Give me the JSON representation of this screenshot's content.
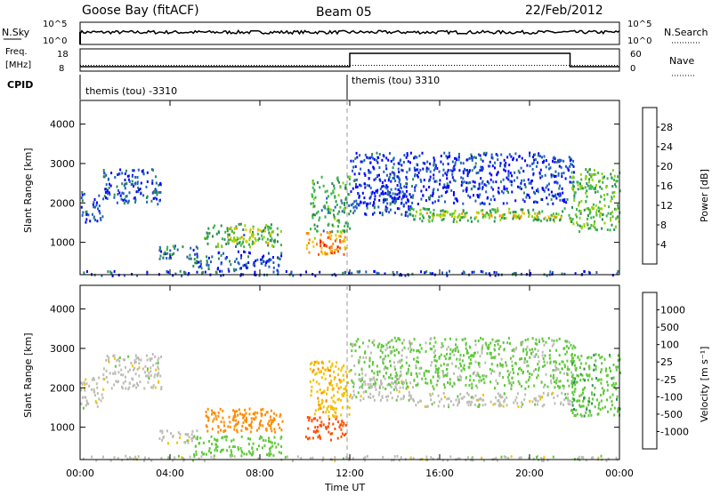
{
  "header": {
    "station": "Goose Bay (fitACF)",
    "beam": "Beam 05",
    "date": "22/Feb/2012"
  },
  "sky_panel": {
    "left_label": "N.Sky",
    "right_label": "N.Search",
    "left_ticks": [
      "10^5",
      "10^0"
    ],
    "right_ticks": [
      "10^5",
      "10^0"
    ]
  },
  "freq_panel": {
    "left_label_line1": "Freq.",
    "left_label_line2": "[MHz]",
    "right_label": "Nave",
    "left_ticks": [
      "18",
      "8"
    ],
    "right_ticks": [
      "60",
      "0"
    ]
  },
  "cpid_panel": {
    "label": "CPID",
    "programs": [
      {
        "name": "themis (tou) -3310",
        "start_hour": 0,
        "end_hour": 12
      },
      {
        "name": "themis (tou) 3310",
        "start_hour": 12,
        "end_hour": 24
      }
    ]
  },
  "axes": {
    "ylabel": "Slant Range [km]",
    "yticks": [
      "4000",
      "3000",
      "2000",
      "1000"
    ],
    "xticks": [
      "00:00",
      "04:00",
      "08:00",
      "12:00",
      "16:00",
      "20:00",
      "00:00"
    ],
    "xlabel": "Time UT"
  },
  "power_bar": {
    "label": "Power [dB]",
    "ticks": [
      "28",
      "24",
      "20",
      "16",
      "12",
      "8",
      "4"
    ],
    "colors": [
      "#ff0000",
      "#ff4f00",
      "#ff8c00",
      "#f2c200",
      "#8ed400",
      "#3ab54a",
      "#2e8b57",
      "#1f5fbf",
      "#0000ff"
    ]
  },
  "velocity_bar": {
    "label": "Velocity [m s⁻¹]",
    "ticks": [
      "1000",
      "500",
      "100",
      "25",
      "-25",
      "-100",
      "-500",
      "-1000"
    ],
    "colors": [
      "#2244aa",
      "#1f7a8c",
      "#2e8b57",
      "#5fc93a",
      "#bdbdb6",
      "#f2c200",
      "#ff8c00",
      "#ff5000",
      "#ff0000"
    ]
  },
  "chart_data": {
    "type": "heatmap",
    "title": "Goose Bay (fitACF)",
    "xlabel": "Time UT",
    "ylabel": "Slant Range [km]",
    "x_range_hours": [
      0,
      24
    ],
    "y_range_km": [
      180,
      4600
    ],
    "power_regions": [
      {
        "t0": 0.0,
        "t1": 1.0,
        "r0": 1500,
        "r1": 2300,
        "power_db": 6
      },
      {
        "t0": 1.0,
        "t1": 3.6,
        "r0": 2000,
        "r1": 2900,
        "power_db": 6
      },
      {
        "t0": 3.5,
        "t1": 5.2,
        "r0": 600,
        "r1": 950,
        "power_db": 8
      },
      {
        "t0": 5.5,
        "t1": 9.0,
        "r0": 900,
        "r1": 1500,
        "power_db": 12
      },
      {
        "t0": 6.5,
        "t1": 8.5,
        "r0": 1000,
        "r1": 1400,
        "power_db": 18
      },
      {
        "t0": 5.0,
        "t1": 9.0,
        "r0": 300,
        "r1": 800,
        "power_db": 6
      },
      {
        "t0": 10.0,
        "t1": 11.8,
        "r0": 700,
        "r1": 1300,
        "power_db": 22
      },
      {
        "t0": 10.6,
        "t1": 11.6,
        "r0": 700,
        "r1": 1100,
        "power_db": 28
      },
      {
        "t0": 10.2,
        "t1": 12.0,
        "r0": 1300,
        "r1": 2700,
        "power_db": 12
      },
      {
        "t0": 12.0,
        "t1": 14.8,
        "r0": 1700,
        "r1": 2300,
        "power_db": 6
      },
      {
        "t0": 14.6,
        "t1": 21.8,
        "r0": 1550,
        "r1": 1900,
        "power_db": 13
      },
      {
        "t0": 15.0,
        "t1": 21.5,
        "r0": 1650,
        "r1": 1800,
        "power_db": 19
      },
      {
        "t0": 12.0,
        "t1": 22.0,
        "r0": 2000,
        "r1": 3300,
        "power_db": 5
      },
      {
        "t0": 21.8,
        "t1": 24.0,
        "r0": 1300,
        "r1": 2900,
        "power_db": 14
      },
      {
        "t0": 0.0,
        "t1": 24.0,
        "r0": 180,
        "r1": 300,
        "power_db": 6
      }
    ],
    "velocity_regions": [
      {
        "t0": 0.0,
        "t1": 1.0,
        "r0": 1500,
        "r1": 2300,
        "velocity_ms": 0
      },
      {
        "t0": 1.0,
        "t1": 3.6,
        "r0": 2000,
        "r1": 2900,
        "velocity_ms": 0
      },
      {
        "t0": 3.5,
        "t1": 5.2,
        "r0": 600,
        "r1": 950,
        "velocity_ms": 0
      },
      {
        "t0": 5.5,
        "t1": 9.0,
        "r0": 900,
        "r1": 1500,
        "velocity_ms": -150
      },
      {
        "t0": 6.5,
        "t1": 8.5,
        "r0": 1000,
        "r1": 1400,
        "velocity_ms": -400
      },
      {
        "t0": 5.0,
        "t1": 9.0,
        "r0": 300,
        "r1": 800,
        "velocity_ms": 60
      },
      {
        "t0": 10.0,
        "t1": 11.8,
        "r0": 700,
        "r1": 1300,
        "velocity_ms": -600
      },
      {
        "t0": 10.2,
        "t1": 12.0,
        "r0": 1300,
        "r1": 2700,
        "velocity_ms": -80
      },
      {
        "t0": 12.0,
        "t1": 14.8,
        "r0": 1700,
        "r1": 2300,
        "velocity_ms": 0
      },
      {
        "t0": 14.6,
        "t1": 21.8,
        "r0": 1550,
        "r1": 1900,
        "velocity_ms": 0
      },
      {
        "t0": 12.0,
        "t1": 22.0,
        "r0": 2000,
        "r1": 3300,
        "velocity_ms": 40
      },
      {
        "t0": 21.8,
        "t1": 24.0,
        "r0": 1300,
        "r1": 2900,
        "velocity_ms": 80
      },
      {
        "t0": 0.0,
        "t1": 24.0,
        "r0": 180,
        "r1": 300,
        "velocity_ms": 0
      }
    ],
    "sky_noise_level": 0.55,
    "search_noise_level": 0.4,
    "nave_first_half": 0.1,
    "nave_second_half": 0.1,
    "freq_first_half_mhz": 10,
    "freq_second_half_mhz": 16,
    "grid": false
  }
}
